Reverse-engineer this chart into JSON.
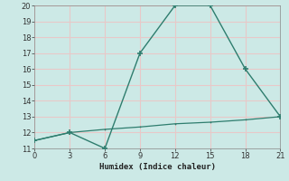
{
  "line1_x": [
    0,
    3,
    6,
    9,
    12,
    15,
    18,
    21
  ],
  "line1_y": [
    11.5,
    12.0,
    11.0,
    17.0,
    20.0,
    20.0,
    16.0,
    13.0
  ],
  "line2_x": [
    0,
    3,
    6,
    9,
    12,
    15,
    18,
    21
  ],
  "line2_y": [
    11.5,
    12.0,
    12.2,
    12.35,
    12.55,
    12.65,
    12.8,
    13.0
  ],
  "line_color": "#2e7d6e",
  "bg_color": "#cce9e6",
  "grid_color": "#e8c8c8",
  "xlabel": "Humidex (Indice chaleur)",
  "xlim": [
    0,
    21
  ],
  "ylim": [
    11,
    20
  ],
  "xticks": [
    0,
    3,
    6,
    9,
    12,
    15,
    18,
    21
  ],
  "yticks": [
    11,
    12,
    13,
    14,
    15,
    16,
    17,
    18,
    19,
    20
  ]
}
